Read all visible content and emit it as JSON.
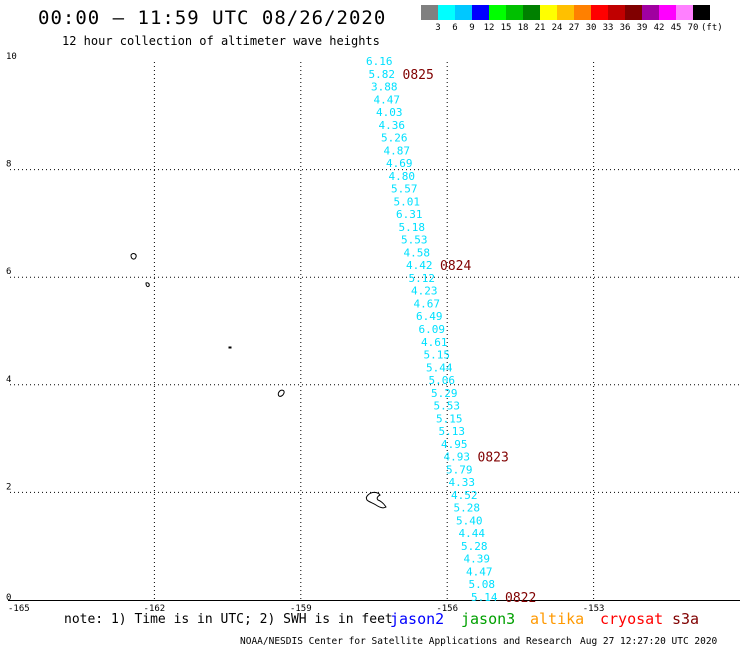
{
  "header": {
    "title": "00:00 – 11:59 UTC 08/26/2020",
    "subtitle": "12 hour collection of altimeter wave heights"
  },
  "color_scale": {
    "unit_label": "(ft)",
    "bins": [
      {
        "label": "3",
        "color": "#808080"
      },
      {
        "label": "6",
        "color": "#00ffff"
      },
      {
        "label": "9",
        "color": "#00c8ff"
      },
      {
        "label": "12",
        "color": "#0000ff"
      },
      {
        "label": "15",
        "color": "#00ff00"
      },
      {
        "label": "18",
        "color": "#00c000"
      },
      {
        "label": "21",
        "color": "#008000"
      },
      {
        "label": "24",
        "color": "#ffff00"
      },
      {
        "label": "27",
        "color": "#ffc000"
      },
      {
        "label": "30",
        "color": "#ff8000"
      },
      {
        "label": "33",
        "color": "#ff0000"
      },
      {
        "label": "36",
        "color": "#c00000"
      },
      {
        "label": "39",
        "color": "#800000"
      },
      {
        "label": "42",
        "color": "#a000a0"
      },
      {
        "label": "45",
        "color": "#ff00ff"
      },
      {
        "label": "70",
        "color": "#ff80ff"
      },
      {
        "label": "",
        "color": "#000000"
      }
    ]
  },
  "map": {
    "lon_ticks": [
      "-165",
      "-162",
      "-159",
      "-156",
      "-153"
    ],
    "lat_ticks": [
      "0",
      "2",
      "4",
      "6",
      "8",
      "10"
    ],
    "lon_range": [
      -165,
      -150
    ],
    "lat_range": [
      0,
      10
    ],
    "wave_color": "#00e0ff",
    "date_color": "#800000",
    "wave_heights_ft": [
      "6.16",
      "5.82",
      "3.88",
      "4.47",
      "4.03",
      "4.36",
      "5.26",
      "4.87",
      "4.69",
      "4.80",
      "5.57",
      "5.01",
      "6.31",
      "5.18",
      "5.53",
      "4.58",
      "4.42",
      "5.12",
      "4.23",
      "4.67",
      "6.49",
      "6.09",
      "4.61",
      "5.15",
      "5.44",
      "5.06",
      "5.29",
      "5.53",
      "5.15",
      "5.13",
      "4.95",
      "4.93",
      "5.79",
      "4.33",
      "4.52",
      "5.28",
      "5.40",
      "4.44",
      "5.28",
      "4.39",
      "4.47",
      "5.08",
      "5.14"
    ],
    "date_markers": [
      {
        "label": "0825",
        "anchor_index": 1
      },
      {
        "label": "0824",
        "anchor_index": 16
      },
      {
        "label": "0823",
        "anchor_index": 31
      },
      {
        "label": "0822",
        "anchor_index": 42
      }
    ]
  },
  "footer": {
    "note": "note: 1) Time is in UTC; 2) SWH is in feet",
    "satellites": [
      {
        "name": "jason2",
        "color": "#0000ff"
      },
      {
        "name": "jason3",
        "color": "#00a000"
      },
      {
        "name": "altika",
        "color": "#ff9900"
      },
      {
        "name": "cryosat",
        "color": "#ff0000"
      },
      {
        "name": "s3a",
        "color": "#800000"
      }
    ],
    "credit": "NOAA/NESDIS Center for Satellite Applications and Research",
    "timestamp": "Aug 27 12:27:20 UTC 2020"
  }
}
